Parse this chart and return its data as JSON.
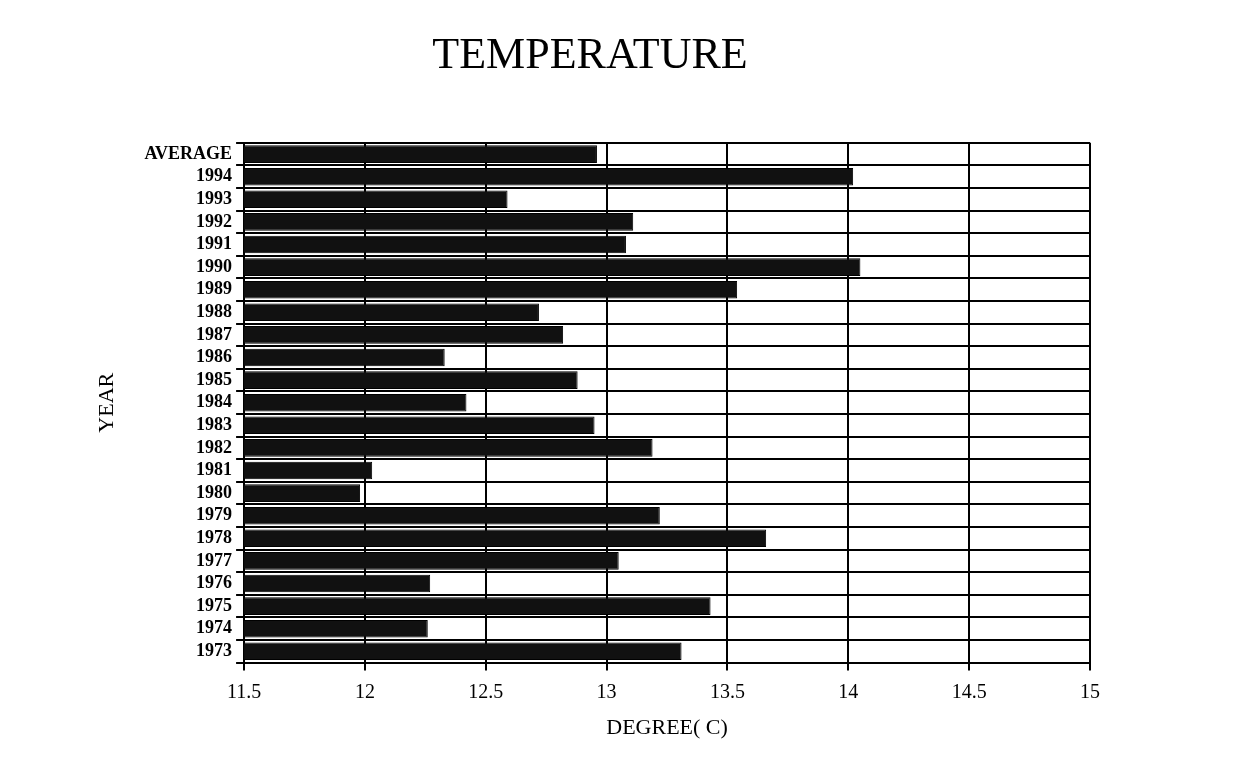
{
  "chart_data": {
    "type": "bar",
    "orientation": "horizontal",
    "title": "TEMPERATURE",
    "xlabel": "DEGREE( C)",
    "ylabel": "YEAR",
    "categories": [
      "AVERAGE",
      "1994",
      "1993",
      "1992",
      "1991",
      "1990",
      "1989",
      "1988",
      "1987",
      "1986",
      "1985",
      "1984",
      "1983",
      "1982",
      "1981",
      "1980",
      "1979",
      "1978",
      "1977",
      "1976",
      "1975",
      "1974",
      "1973"
    ],
    "values": [
      12.96,
      14.02,
      12.59,
      13.11,
      13.08,
      14.05,
      13.54,
      12.72,
      12.82,
      12.33,
      12.88,
      12.42,
      12.95,
      13.19,
      12.03,
      11.98,
      13.22,
      13.66,
      13.05,
      12.27,
      13.43,
      12.26,
      13.31
    ],
    "color": "#111111",
    "xlim": [
      11.5,
      15
    ],
    "xticks": [
      11.5,
      12,
      12.5,
      13,
      13.5,
      14,
      14.5,
      15
    ],
    "grid": true,
    "legend": false
  }
}
